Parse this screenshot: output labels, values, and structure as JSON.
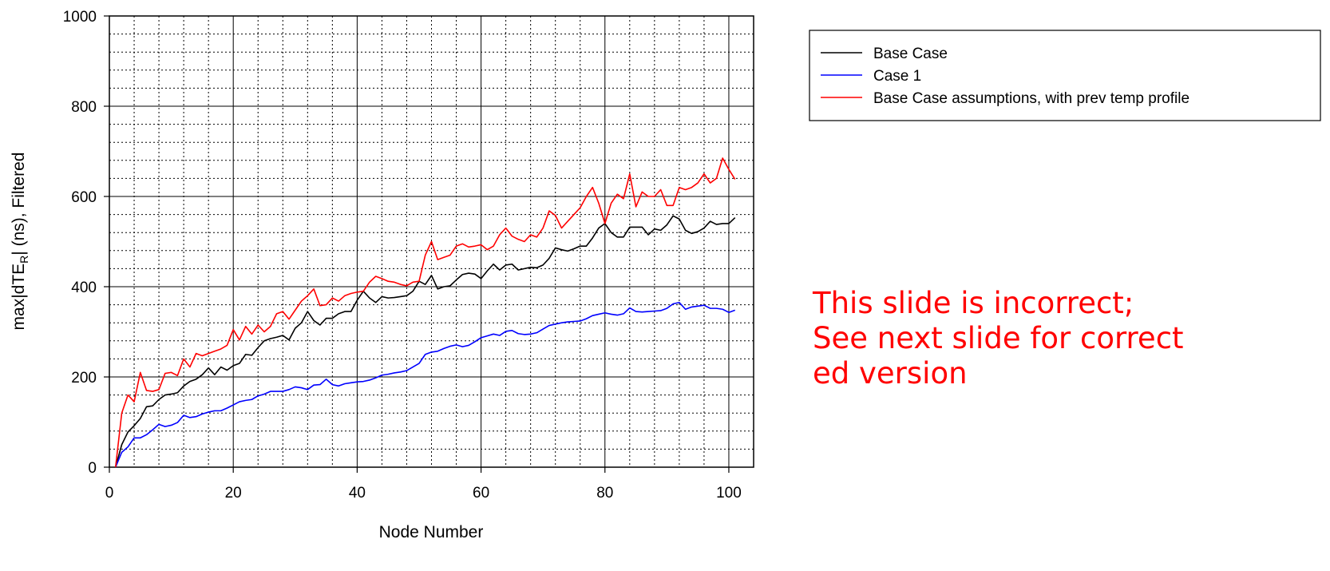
{
  "chart_data": {
    "type": "line",
    "xlabel": "Node Number",
    "ylabel_parts": {
      "pre": "max|dTE",
      "sub": "R",
      "post": "| (ns), Filtered"
    },
    "xlim": [
      0,
      104
    ],
    "ylim": [
      0,
      1000
    ],
    "xticks": [
      0,
      20,
      40,
      60,
      80,
      100
    ],
    "yticks": [
      0,
      200,
      400,
      600,
      800,
      1000
    ],
    "grid": {
      "major": "solid",
      "minor": "dotted",
      "x_minor_step": 4,
      "y_minor_step": 40
    },
    "legend_position": "top-right",
    "x": [
      1,
      2,
      3,
      4,
      5,
      6,
      7,
      8,
      9,
      10,
      11,
      12,
      13,
      14,
      15,
      16,
      17,
      18,
      19,
      20,
      21,
      22,
      23,
      24,
      25,
      26,
      27,
      28,
      29,
      30,
      31,
      32,
      33,
      34,
      35,
      36,
      37,
      38,
      39,
      40,
      41,
      42,
      43,
      44,
      45,
      46,
      47,
      48,
      49,
      50,
      51,
      52,
      53,
      54,
      55,
      56,
      57,
      58,
      59,
      60,
      61,
      62,
      63,
      64,
      65,
      66,
      67,
      68,
      69,
      70,
      71,
      72,
      73,
      74,
      75,
      76,
      77,
      78,
      79,
      80,
      81,
      82,
      83,
      84,
      85,
      86,
      87,
      88,
      89,
      90,
      91,
      92,
      93,
      94,
      95,
      96,
      97,
      98,
      99,
      100,
      101
    ],
    "series": [
      {
        "name": "Base Case",
        "color": "#000000",
        "values": [
          0,
          50,
          78,
          92,
          108,
          134,
          136,
          150,
          160,
          162,
          165,
          180,
          190,
          195,
          205,
          220,
          205,
          222,
          215,
          225,
          230,
          250,
          248,
          265,
          280,
          285,
          288,
          292,
          282,
          308,
          320,
          345,
          325,
          315,
          330,
          330,
          340,
          345,
          345,
          370,
          390,
          375,
          365,
          378,
          375,
          376,
          378,
          380,
          390,
          412,
          405,
          425,
          395,
          400,
          402,
          415,
          427,
          430,
          428,
          418,
          435,
          450,
          437,
          448,
          450,
          437,
          440,
          443,
          442,
          448,
          463,
          486,
          482,
          479,
          484,
          490,
          490,
          508,
          530,
          540,
          520,
          510,
          510,
          532,
          532,
          532,
          515,
          528,
          525,
          537,
          557,
          550,
          525,
          518,
          522,
          530,
          545,
          538,
          540,
          540,
          553
        ]
      },
      {
        "name": "Case 1",
        "color": "#0000ff",
        "values": [
          0,
          33,
          45,
          65,
          65,
          72,
          83,
          95,
          90,
          93,
          99,
          115,
          110,
          112,
          118,
          122,
          125,
          125,
          131,
          138,
          145,
          148,
          150,
          158,
          162,
          168,
          168,
          168,
          172,
          178,
          176,
          172,
          182,
          183,
          195,
          183,
          180,
          185,
          187,
          189,
          190,
          193,
          198,
          204,
          206,
          209,
          211,
          214,
          222,
          230,
          250,
          255,
          257,
          263,
          268,
          271,
          267,
          270,
          278,
          287,
          291,
          295,
          292,
          301,
          303,
          296,
          294,
          295,
          298,
          306,
          314,
          317,
          320,
          322,
          323,
          324,
          329,
          336,
          339,
          342,
          339,
          337,
          340,
          353,
          345,
          344,
          345,
          346,
          347,
          352,
          362,
          365,
          350,
          355,
          357,
          359,
          352,
          352,
          350,
          343,
          348
        ]
      },
      {
        "name": "Base Case assumptions, with prev temp profile",
        "color": "#ff0000",
        "values": [
          0,
          120,
          160,
          145,
          210,
          170,
          168,
          172,
          208,
          210,
          203,
          240,
          222,
          252,
          247,
          252,
          257,
          262,
          270,
          305,
          282,
          312,
          295,
          315,
          300,
          312,
          340,
          345,
          328,
          348,
          368,
          380,
          395,
          358,
          360,
          375,
          368,
          380,
          385,
          388,
          390,
          410,
          423,
          418,
          412,
          410,
          405,
          402,
          410,
          412,
          470,
          500,
          460,
          465,
          470,
          490,
          495,
          488,
          490,
          493,
          482,
          490,
          515,
          530,
          512,
          505,
          500,
          515,
          510,
          530,
          568,
          558,
          530,
          545,
          560,
          575,
          600,
          620,
          585,
          540,
          585,
          605,
          595,
          650,
          577,
          610,
          600,
          600,
          615,
          580,
          580,
          620,
          615,
          620,
          630,
          650,
          630,
          640,
          685,
          660,
          638
        ]
      }
    ]
  },
  "annotation": {
    "lines": [
      "This slide is incorrect;",
      "See next slide for correct",
      "ed version"
    ],
    "color": "#ff0000"
  }
}
